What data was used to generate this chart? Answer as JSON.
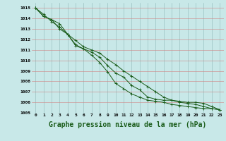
{
  "background_color": "#c8e8e8",
  "grid_color": "#b0c8c8",
  "line_color": "#1a5c1a",
  "xlabel": "Graphe pression niveau de la mer (hPa)",
  "xlabel_fontsize": 7,
  "xlim": [
    -0.5,
    23.5
  ],
  "ylim": [
    1005,
    1015.5
  ],
  "x_ticks": [
    0,
    1,
    2,
    3,
    4,
    5,
    6,
    7,
    8,
    9,
    10,
    11,
    12,
    13,
    14,
    15,
    16,
    17,
    18,
    19,
    20,
    21,
    22,
    23
  ],
  "y_ticks": [
    1005,
    1006,
    1007,
    1008,
    1009,
    1010,
    1011,
    1012,
    1013,
    1014,
    1015
  ],
  "series": [
    [
      1015.0,
      1014.2,
      1013.9,
      1013.5,
      1012.5,
      1011.4,
      1011.1,
      1010.8,
      1010.3,
      1009.5,
      1008.8,
      1008.4,
      1007.6,
      1007.2,
      1006.5,
      1006.3,
      1006.2,
      1006.2,
      1006.1,
      1006.0,
      1006.0,
      1005.9,
      1005.6,
      1005.3
    ],
    [
      1015.0,
      1014.2,
      1013.9,
      1013.0,
      1012.5,
      1011.5,
      1011.1,
      1010.5,
      1009.8,
      1008.9,
      1007.8,
      1007.3,
      1006.8,
      1006.5,
      1006.2,
      1006.1,
      1006.0,
      1005.8,
      1005.7,
      1005.6,
      1005.5,
      1005.4,
      1005.4,
      1005.3
    ],
    [
      1015.0,
      1014.4,
      1013.7,
      1013.2,
      1012.5,
      1011.9,
      1011.3,
      1011.0,
      1010.7,
      1010.1,
      1009.6,
      1009.0,
      1008.5,
      1008.0,
      1007.5,
      1007.0,
      1006.5,
      1006.2,
      1006.0,
      1005.9,
      1005.8,
      1005.6,
      1005.4,
      1005.3
    ]
  ]
}
